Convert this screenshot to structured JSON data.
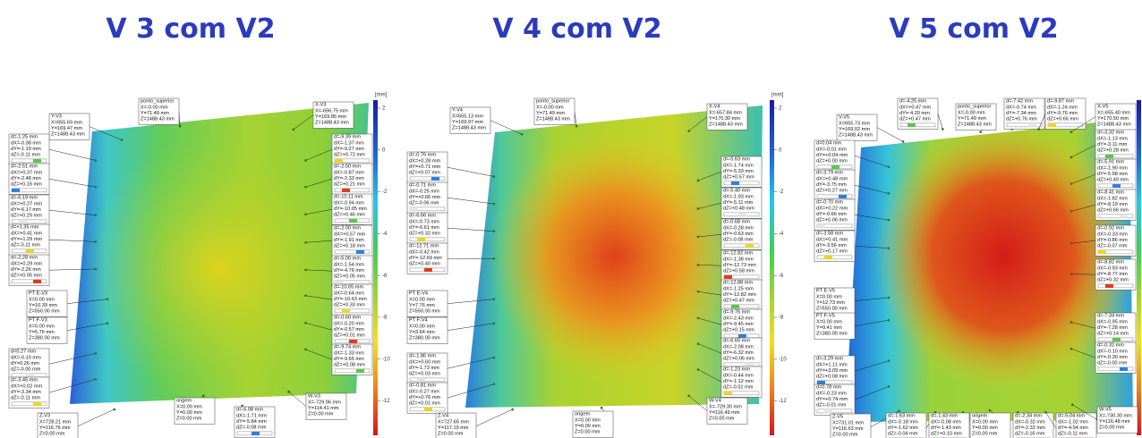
{
  "panels": [
    {
      "title": "V 3 com V2",
      "unit": "[mm]",
      "scale": [
        "2",
        "0",
        "-2",
        "-4",
        "-6",
        "-8",
        "-10",
        "-12"
      ],
      "labels": [
        {
          "lines": [
            "ponto_superior",
            "X=-0.00 mm",
            "Y=71.49 mm",
            "Z=1488.43 mm"
          ]
        },
        {
          "lines": [
            "X-V3",
            "X=-656.75 mm",
            "Y=169.85 mm",
            "Z=1488.43 mm"
          ]
        },
        {
          "lines": [
            "Y-V3",
            "X=655.69 mm",
            "Y=169.47 mm",
            "Z=1488.43 mm"
          ]
        },
        {
          "lines": [
            "d=-1.25 mm",
            "dX=-0.38 mm",
            "dY=-1.19 mm",
            "dZ=-0.11 mm"
          ]
        },
        {
          "lines": [
            "d=-2.51 mm",
            "dX=+0.37 mm",
            "dY=-2.48 mm",
            "dZ=+0.16 mm"
          ]
        },
        {
          "lines": [
            "d=-6.19 mm",
            "dX=+0.27 mm",
            "dY=-6.17 mm",
            "dZ=+0.29 mm"
          ]
        },
        {
          "lines": [
            "d=+1.35 mm",
            "dX=+0.41 mm",
            "dY=+1.29 mm",
            "dZ=-0.11 mm"
          ]
        },
        {
          "lines": [
            "d=-2.28 mm",
            "dX=+0.29 mm",
            "dY=-2.26 mm",
            "dZ=+0.05 mm"
          ]
        },
        {
          "lines": [
            "PT E-V3",
            "X=0.00 mm",
            "Y=10.39 mm",
            "Z=550.00 mm"
          ]
        },
        {
          "lines": [
            "PT F-V3",
            "X=0.00 mm",
            "Y=5.76 mm",
            "Z=380.00 mm"
          ]
        },
        {
          "lines": [
            "d=0.27 mm",
            "dX=-0.10 mm",
            "dY=0.26 mm",
            "dZ=-0.00 mm"
          ]
        },
        {
          "lines": [
            "d=-3.45 mm",
            "dX=+0.02 mm",
            "dY=-3.34 mm",
            "dZ=-0.11 mm"
          ]
        },
        {
          "lines": [
            "Z-V3",
            "X=728.21 mm",
            "Y=116.76 mm",
            "Z=0.00 mm"
          ]
        },
        {
          "lines": [
            "origem",
            "X=0.00 mm",
            "Y=0.00 mm",
            "Z=0.00 mm"
          ]
        },
        {
          "lines": [
            "d=-6.08 mm",
            "dX=-1.71 mm",
            "dY=-5.84 mm",
            "dZ=-0.08 mm"
          ]
        },
        {
          "lines": [
            "W-V3",
            "X=-729.96 mm",
            "Y=114.41 mm",
            "Z=0.00 mm"
          ]
        },
        {
          "lines": [
            "d=-9.39 mm",
            "dX=-1.37 mm",
            "dY=-9.27 mm",
            "dZ=+0.72 mm"
          ]
        },
        {
          "lines": [
            "d=-2.50 mm",
            "dX=-0.87 mm",
            "dY=-2.33 mm",
            "dZ=+0.21 mm"
          ]
        },
        {
          "lines": [
            "d=-10.11 mm",
            "dX=-0.94 mm",
            "dY=-10.05 mm",
            "dZ=+0.46 mm"
          ]
        },
        {
          "lines": [
            "d=-2.00 mm",
            "dX=+0.57 mm",
            "dY=-1.91 mm",
            "dZ=+0.18 mm"
          ]
        },
        {
          "lines": [
            "d=-5.00 mm",
            "dX=-1.54 mm",
            "dY=-4.76 mm",
            "dZ=+0.05 mm"
          ]
        },
        {
          "lines": [
            "d=-10.65 mm",
            "dX=-0.64 mm",
            "dY=-10.63 mm",
            "dZ=+0.33 mm"
          ]
        },
        {
          "lines": [
            "d=-0.60 mm",
            "dX=-0.20 mm",
            "dY=-0.57 mm",
            "dZ=+0.01 mm"
          ]
        },
        {
          "lines": [
            "d=-9.74 mm",
            "dX=-1.33 mm",
            "dY=-9.65 mm",
            "dZ=+0.08 mm"
          ]
        }
      ]
    },
    {
      "title": "V 4 com V2",
      "unit": "[mm]",
      "scale": [
        "2",
        "0",
        "-2",
        "-4",
        "-6",
        "-8",
        "-10",
        "-12"
      ],
      "labels": [
        {
          "lines": [
            "ponto_superior",
            "X=-0.00 mm",
            "Y=71.49 mm",
            "Z=1488.43 mm"
          ]
        },
        {
          "lines": [
            "Y-V4",
            "X=655.13 mm",
            "Y=169.97 mm",
            "Z=1488.43 mm"
          ]
        },
        {
          "lines": [
            "X-V4",
            "X=-657.84 mm",
            "Y=170.30 mm",
            "Z=1488.43 mm"
          ]
        },
        {
          "lines": [
            "d=-0.76 mm",
            "dX=+0.28 mm",
            "dY=+0.71 mm",
            "dZ=+0.07 mm"
          ]
        },
        {
          "lines": [
            "d=-0.71 mm",
            "dX=-0.25 mm",
            "dY=+0.66 mm",
            "dZ=-0.06 mm"
          ]
        },
        {
          "lines": [
            "d=-6.66 mm",
            "dX=-0.73 mm",
            "dY=-6.61 mm",
            "dZ=+0.32 mm"
          ]
        },
        {
          "lines": [
            "d=-12.71 mm",
            "dX=-0.42 mm",
            "dY=-12.69 mm",
            "dZ=+0.40 mm"
          ]
        },
        {
          "lines": [
            "PT E-V4",
            "X=0.00 mm",
            "Y=7.76 mm",
            "Z=550.00 mm"
          ]
        },
        {
          "lines": [
            "PT F-V4",
            "X=0.00 mm",
            "Y=3.64 mm",
            "Z=380.00 mm"
          ]
        },
        {
          "lines": [
            "d=-1.86 mm",
            "dX=+0.60 mm",
            "dY=-1.73 mm",
            "dZ=+0.03 mm"
          ]
        },
        {
          "lines": [
            "d=-0.81 mm",
            "dX=-0.27 mm",
            "dY=+0.76 mm",
            "dZ=+0.01 mm"
          ]
        },
        {
          "lines": [
            "Z-V4",
            "X=727.65 mm",
            "Y=117.19 mm",
            "Z=0.00 mm"
          ]
        },
        {
          "lines": [
            "origem",
            "X=0.00 mm",
            "Y=0.00 mm",
            "Z=0.00 mm"
          ]
        },
        {
          "lines": [
            "d=-5.63 mm",
            "dX=-1.74 mm",
            "dY=-5.33 mm",
            "dZ=+0.57 mm"
          ]
        },
        {
          "lines": [
            "d=-5.40 mm",
            "dX=-1.93 mm",
            "dY=-5.11 mm",
            "dZ=+0.48 mm"
          ]
        },
        {
          "lines": [
            "d=-0.68 mm",
            "dX=-0.28 mm",
            "dY=-0.63 mm",
            "dZ=-0.08 mm"
          ]
        },
        {
          "lines": [
            "d=-12.82 mm",
            "dX=-1.38 mm",
            "dY=-12.73 mm",
            "dZ=+0.58 mm"
          ]
        },
        {
          "lines": [
            "d=-12.88 mm",
            "dX=-1.25 mm",
            "dY=-12.82 mm",
            "dZ=+0.47 mm"
          ]
        },
        {
          "lines": [
            "d=-9.76 mm",
            "dX=-2.43 mm",
            "dY=-9.45 mm",
            "dZ=+0.15 mm"
          ]
        },
        {
          "lines": [
            "d=-6.65 mm",
            "dX=-2.08 mm",
            "dY=-6.32 mm",
            "dZ=+0.06 mm"
          ]
        },
        {
          "lines": [
            "d=-1.23 mm",
            "dX=-0.44 mm",
            "dY=-1.12 mm",
            "dZ=-0.01 mm"
          ]
        },
        {
          "lines": [
            "W-V4",
            "X=-729.30 mm",
            "Y=116.49 mm",
            "Z=0.00 mm"
          ]
        }
      ]
    },
    {
      "title": "V 5 com V2",
      "labels": [
        {
          "lines": [
            "V-V5",
            "X=655.73 mm",
            "Y=169.02 mm",
            "Z=1488.43 mm"
          ]
        },
        {
          "lines": [
            "d=-4.25 mm",
            "dX=+0.47 mm",
            "dY=-4.20 mm",
            "dZ=+0.47 mm"
          ]
        },
        {
          "lines": [
            "ponto_superior",
            "X=-0.00 mm",
            "Y=71.49 mm",
            "Z=1488.43 mm"
          ]
        },
        {
          "lines": [
            "d=-7.42 mm",
            "dX=-0.74 mm",
            "dY=-7.34 mm",
            "dZ=+0.76 mm"
          ]
        },
        {
          "lines": [
            "d=-9.87 mm",
            "dX=-1.24 mm",
            "dY=-9.76 mm",
            "dZ=+0.66 mm"
          ]
        },
        {
          "lines": [
            "X-V5",
            "X=-655.40 mm",
            "Y=170.50 mm",
            "Z=1488.43 mm"
          ]
        },
        {
          "lines": [
            "d=0.04 mm",
            "dX=-0.01 mm",
            "dY=+0.04 mm",
            "dZ=+0.00 mm"
          ]
        },
        {
          "lines": [
            "d=-3.79 mm",
            "dX=+0.48 mm",
            "dY=-3.75 mm",
            "dZ=+0.27 mm"
          ]
        },
        {
          "lines": [
            "d=-0.70 mm",
            "dX=+0.22 mm",
            "dY=-0.66 mm",
            "dZ=+0.06 mm"
          ]
        },
        {
          "lines": [
            "d=-3.58 mm",
            "dX=+0.41 mm",
            "dY=-3.56 mm",
            "dZ=+0.17 mm"
          ]
        },
        {
          "lines": [
            "PT E-V5",
            "X=0.00 mm",
            "Y=12.73 mm",
            "Z=550.00 mm"
          ]
        },
        {
          "lines": [
            "PT F-V5",
            "X=0.00 mm",
            "Y=9.41 mm",
            "Z=380.00 mm"
          ]
        },
        {
          "lines": [
            "d=-3.29 mm",
            "dX=+1.11 mm",
            "dY=+3.09 mm",
            "dZ=+0.08 mm"
          ]
        },
        {
          "lines": [
            "d=0.78 mm",
            "dX=-0.23 mm",
            "dY=+0.74 mm",
            "dZ=-0.01 mm"
          ]
        },
        {
          "lines": [
            "Z-V5",
            "X=731.01 mm",
            "Y=116.63 mm",
            "Z=0.00 mm"
          ]
        },
        {
          "lines": [
            "d=-1.63 mm",
            "dX=-0.18 mm",
            "dY=-1.62 mm",
            "dZ=-0.04 mm"
          ]
        },
        {
          "lines": [
            "d=-1.43 mm",
            "dX=-0.08 mm",
            "dY=-1.43 mm",
            "dZ=+0.10 mm"
          ]
        },
        {
          "lines": [
            "origem",
            "X=0.00 mm",
            "Y=0.00 mm",
            "Z=0.00 mm"
          ]
        },
        {
          "lines": [
            "d=-2.34 mm",
            "dX=-0.32 mm",
            "dY=-2.32 mm",
            "dZ=-0.16 mm"
          ]
        },
        {
          "lines": [
            "d=-5.04 mm",
            "dX=-1.02 mm",
            "dY=-4.94 mm",
            "dZ=-0.11 mm"
          ]
        },
        {
          "lines": [
            "W-V5",
            "X=-730.30 mm",
            "Y=116.48 mm",
            "Z=0.00 mm"
          ]
        },
        {
          "lines": [
            "d=-3.32 mm",
            "dX=-1.13 mm",
            "dY=-3.11 mm",
            "dZ=+0.28 mm"
          ]
        },
        {
          "lines": [
            "d=-5.91 mm",
            "dX=-1.90 mm",
            "dY=-5.58 mm",
            "dZ=+0.49 mm"
          ]
        },
        {
          "lines": [
            "d=-8.41 mm",
            "dX=-1.82 mm",
            "dY=-8.19 mm",
            "dZ=+0.66 mm"
          ]
        },
        {
          "lines": [
            "d=-0.92 mm",
            "dX=-0.33 mm",
            "dY=-0.86 mm",
            "dZ=-0.07 mm"
          ]
        },
        {
          "lines": [
            "d=-8.82 mm",
            "dX=-0.93 mm",
            "dY=-8.77 mm",
            "dZ=+0.32 mm"
          ]
        },
        {
          "lines": [
            "d=-7.34 mm",
            "dX=-0.95 mm",
            "dY=-7.28 mm",
            "dZ=+0.14 mm"
          ]
        },
        {
          "lines": [
            "d=-0.32 mm",
            "dX=-0.10 mm",
            "dY=-0.30 mm",
            "dZ=-0.00 mm"
          ]
        }
      ]
    }
  ]
}
